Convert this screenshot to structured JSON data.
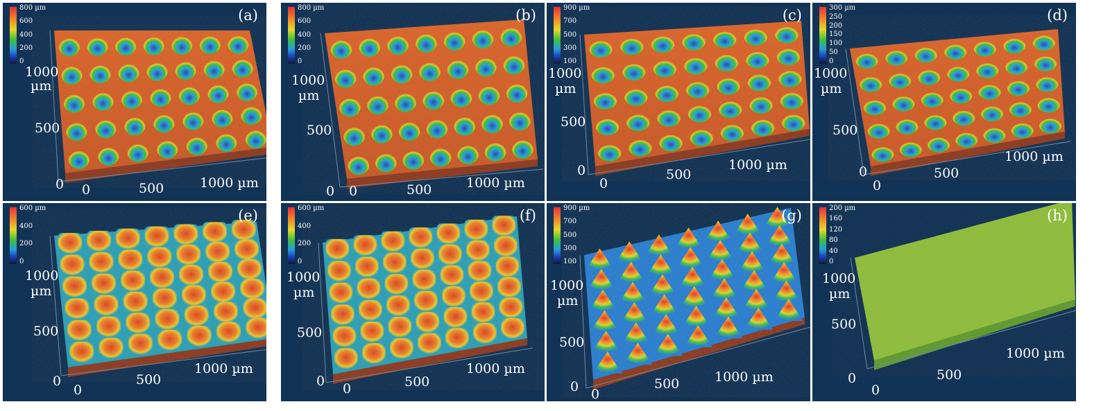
{
  "panels": [
    {
      "label": "(a)",
      "ticks": [
        "800 µm",
        "600",
        "400",
        "200",
        "0"
      ],
      "y_max": "1000",
      "y_unit": "µm",
      "y_mid": "500",
      "origin": "0",
      "x_zero": "0",
      "x_mid": "500",
      "x_max": "1000 µm",
      "type": "dimples"
    },
    {
      "label": "(b)",
      "ticks": [
        "800 µm",
        "600",
        "400",
        "200",
        "0"
      ],
      "y_max": "1000",
      "y_unit": "µm",
      "y_mid": "500",
      "origin": "0",
      "x_zero": "0",
      "x_mid": "500",
      "x_max": "1000 µm",
      "type": "dimples"
    },
    {
      "label": "(c)",
      "ticks": [
        "900 µm",
        "700",
        "500",
        "300",
        "100"
      ],
      "y_max": "1000",
      "y_unit": "µm",
      "y_mid": "500",
      "origin": "0",
      "x_zero": "0",
      "x_mid": "500",
      "x_max": "1000 µm",
      "type": "dimples"
    },
    {
      "label": "(d)",
      "ticks": [
        "300 µm",
        "250",
        "200",
        "150",
        "100",
        "50",
        "0"
      ],
      "y_max": "1000",
      "y_unit": "µm",
      "y_mid": "500",
      "origin": "0",
      "x_zero": "0",
      "x_mid": "500",
      "x_max": "1000 µm",
      "type": "dimples"
    },
    {
      "label": "(e)",
      "ticks": [
        "600 µm",
        "400",
        "200",
        "0"
      ],
      "y_max": "1000",
      "y_unit": "µm",
      "y_mid": "500",
      "origin": "0",
      "x_zero": "0",
      "x_mid": "500",
      "x_max": "1000 µm",
      "type": "pillars"
    },
    {
      "label": "(f)",
      "ticks": [
        "600 µm",
        "400",
        "200",
        "0"
      ],
      "y_max": "1000",
      "y_unit": "µm",
      "y_mid": "500",
      "origin": "0",
      "x_zero": "0",
      "x_mid": "500",
      "x_max": "1000 µm",
      "type": "pillars"
    },
    {
      "label": "(g)",
      "ticks": [
        "900 µm",
        "700",
        "500",
        "300",
        "100"
      ],
      "y_max": "1000",
      "y_unit": "µm",
      "y_mid": "500",
      "origin": "0",
      "x_zero": "0",
      "x_mid": "500",
      "x_max": "1000 µm",
      "type": "cones"
    },
    {
      "label": "(h)",
      "ticks": [
        "200 µm",
        "160",
        "120",
        "80",
        "40",
        "0"
      ],
      "y_max": "1000",
      "y_unit": "µm",
      "y_mid": "500",
      "origin": "0",
      "x_zero": "0",
      "x_mid": "500",
      "x_max": "1000 µm",
      "type": "flat"
    }
  ],
  "colors": {
    "background": "#113355",
    "surface_high": "#d9622e",
    "surface_mid": "#e6c832",
    "surface_low": "#2a6fc0"
  }
}
